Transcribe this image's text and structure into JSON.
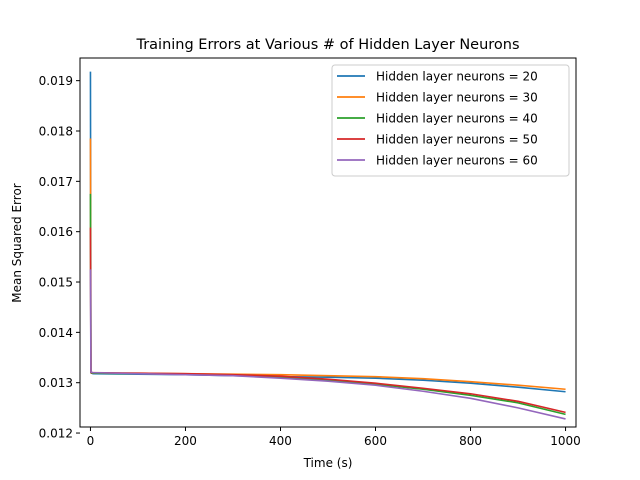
{
  "chart_data": {
    "type": "line",
    "title": "Training Errors at Various # of Hidden Layer Neurons",
    "xlabel": "Time (s)",
    "ylabel": "Mean Squared Error",
    "xlim": [
      -22,
      1022
    ],
    "ylim": [
      0.01212,
      0.01945
    ],
    "xticks": [
      0,
      200,
      400,
      600,
      800,
      1000
    ],
    "xtick_labels": [
      "0",
      "200",
      "400",
      "600",
      "800",
      "1000"
    ],
    "yticks": [
      0.012,
      0.013,
      0.014,
      0.015,
      0.016,
      0.017,
      0.018,
      0.019
    ],
    "ytick_labels": [
      "0.012",
      "0.013",
      "0.014",
      "0.015",
      "0.016",
      "0.017",
      "0.018",
      "0.019"
    ],
    "grid": false,
    "legend": "top-right",
    "series": [
      {
        "name": "Hidden layer neurons = 20",
        "color": "#1f77b4",
        "x": [
          0,
          1,
          2,
          5,
          100,
          200,
          300,
          400,
          500,
          600,
          700,
          800,
          900,
          1000
        ],
        "y": [
          0.01918,
          0.0132,
          0.01319,
          0.01318,
          0.01317,
          0.01316,
          0.01314,
          0.01312,
          0.01311,
          0.01309,
          0.01305,
          0.01299,
          0.01291,
          0.01282
        ]
      },
      {
        "name": "Hidden layer neurons = 30",
        "color": "#ff7f0e",
        "x": [
          0,
          1,
          2,
          5,
          100,
          200,
          300,
          400,
          500,
          600,
          700,
          800,
          900,
          1000
        ],
        "y": [
          0.01785,
          0.0132,
          0.0132,
          0.01319,
          0.01319,
          0.01318,
          0.01317,
          0.01316,
          0.01314,
          0.01312,
          0.01308,
          0.01302,
          0.01295,
          0.01287
        ]
      },
      {
        "name": "Hidden layer neurons = 40",
        "color": "#2ca02c",
        "x": [
          0,
          1,
          2,
          5,
          100,
          200,
          300,
          400,
          500,
          600,
          700,
          800,
          900,
          1000
        ],
        "y": [
          0.01675,
          0.0132,
          0.01319,
          0.01319,
          0.01318,
          0.01317,
          0.01315,
          0.01311,
          0.01305,
          0.01297,
          0.01287,
          0.01275,
          0.0126,
          0.01237
        ]
      },
      {
        "name": "Hidden layer neurons = 50",
        "color": "#d62728",
        "x": [
          0,
          1,
          2,
          5,
          100,
          200,
          300,
          400,
          500,
          600,
          700,
          800,
          900,
          1000
        ],
        "y": [
          0.01608,
          0.0132,
          0.0132,
          0.0132,
          0.01319,
          0.01318,
          0.01316,
          0.01313,
          0.01307,
          0.01299,
          0.01289,
          0.01278,
          0.01263,
          0.01241
        ]
      },
      {
        "name": "Hidden layer neurons = 60",
        "color": "#9467bd",
        "x": [
          0,
          1,
          2,
          5,
          100,
          200,
          300,
          400,
          500,
          600,
          700,
          800,
          900,
          1000
        ],
        "y": [
          0.01525,
          0.01321,
          0.01321,
          0.0132,
          0.01318,
          0.01316,
          0.01314,
          0.01309,
          0.01303,
          0.01295,
          0.01283,
          0.01269,
          0.0125,
          0.01228
        ]
      }
    ]
  }
}
